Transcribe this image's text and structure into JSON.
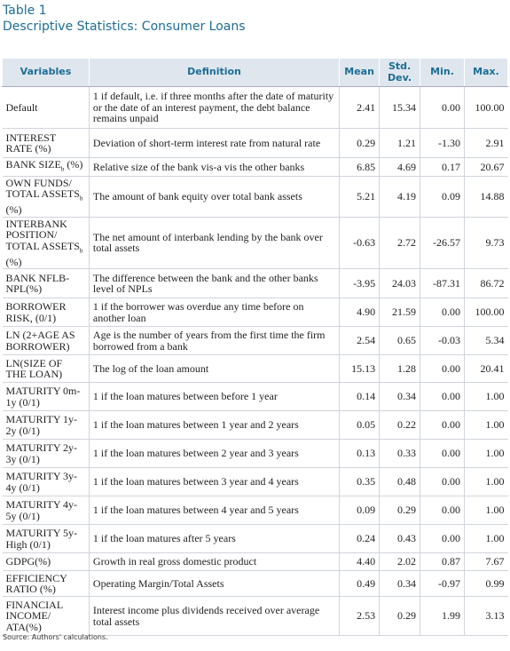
{
  "header": {
    "title": "Table 1",
    "subtitle": "Descriptive Statistics: Consumer Loans"
  },
  "table": {
    "columns": [
      "Variables",
      "Definition",
      "Mean",
      "Std. Dev.",
      "Min.",
      "Max."
    ],
    "rows": [
      [
        "Default",
        "1 if default, i.e. if three months after the date of maturity or the date of an interest payment, the debt balance remains unpaid",
        "2.41",
        "15.34",
        "0.00",
        "100.00"
      ],
      [
        "INTEREST RATE (%)",
        "Deviation of short-term interest rate from natural rate",
        "0.29",
        "1.21",
        "-1.30",
        "2.91"
      ],
      [
        {
          "text": "BANK SIZE",
          "sub": "b",
          "after": "(%)"
        },
        "Relative size of the bank vis-a vis the other banks",
        "6.85",
        "4.69",
        "0.17",
        "20.67"
      ],
      [
        {
          "text": "OWN FUNDS/ TOTAL ASSETS",
          "sub": "b",
          "after": "(%)"
        },
        "The amount of bank equity over total bank assets",
        "5.21",
        "4.19",
        "0.09",
        "14.88"
      ],
      [
        {
          "text": "INTERBANK POSITION/ TOTAL ASSETS",
          "sub": "b",
          "after": "(%)"
        },
        "The net amount of interbank lending by the bank over total assets",
        "-0.63",
        "2.72",
        "-26.57",
        "9.73"
      ],
      [
        "BANK NFLB-NPL(%)",
        "The difference between the bank and the other banks level of NPLs",
        "-3.95",
        "24.03",
        "-87.31",
        "86.72"
      ],
      [
        "BORROWER RISK, (0/1)",
        "1 if the borrower was overdue any time before on another loan",
        "4.90",
        "21.59",
        "0.00",
        "100.00"
      ],
      [
        "LN (2+AGE AS BORROWER)",
        "Age is the number of years from the first time the firm borrowed from a bank",
        "2.54",
        "0.65",
        "-0.03",
        "5.34"
      ],
      [
        "LN(SIZE OF THE LOAN)",
        "The log of the loan amount",
        "15.13",
        "1.28",
        "0.00",
        "20.41"
      ],
      [
        "MATURITY 0m-1y (0/1)",
        "1 if the loan matures between before 1 year",
        "0.14",
        "0.34",
        "0.00",
        "1.00"
      ],
      [
        "MATURITY 1y-2y (0/1)",
        "1 if the loan matures between 1 year and 2 years",
        "0.05",
        "0.22",
        "0.00",
        "1.00"
      ],
      [
        "MATURITY 2y-3y (0/1)",
        "1 if the loan matures between 2 year and 3 years",
        "0.13",
        "0.33",
        "0.00",
        "1.00"
      ],
      [
        "MATURITY 3y-4y (0/1)",
        "1 if the loan matures between 3 year and 4 years",
        "0.35",
        "0.48",
        "0.00",
        "1.00"
      ],
      [
        "MATURITY 4y-5y (0/1)",
        "1 if the loan matures between 4 year and 5 years",
        "0.09",
        "0.29",
        "0.00",
        "1.00"
      ],
      [
        "MATURITY 5y-High (0/1)",
        "1 if the loan matures after 5 years",
        "0.24",
        "0.43",
        "0.00",
        "1.00"
      ],
      [
        "GDPG(%)",
        "Growth in real gross domestic product",
        "4.40",
        "2.02",
        "0.87",
        "7.67"
      ],
      [
        "EFFICIENCY RATIO (%)",
        "Operating Margin/Total Assets",
        "0.49",
        "0.34",
        "-0.97",
        "0.99"
      ],
      [
        "FINANCIAL INCOME/ ATA(%)",
        "Interest income plus dividends received over average total assets",
        "2.53",
        "0.29",
        "1.99",
        "3.13"
      ]
    ]
  },
  "footer": {
    "source": "Source: Authors' calculations."
  }
}
